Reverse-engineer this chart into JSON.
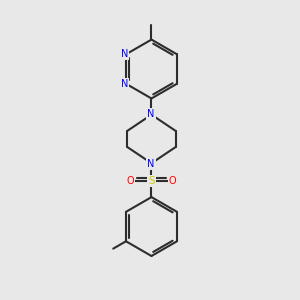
{
  "background_color": "#e8e8e8",
  "line_color": "#2d2d2d",
  "n_color": "#0000ff",
  "s_color": "#cccc00",
  "o_color": "#ff0000",
  "bond_width": 1.5,
  "figsize": [
    3.0,
    3.0
  ],
  "dpi": 100,
  "xlim": [
    0,
    10
  ],
  "ylim": [
    0,
    10
  ]
}
